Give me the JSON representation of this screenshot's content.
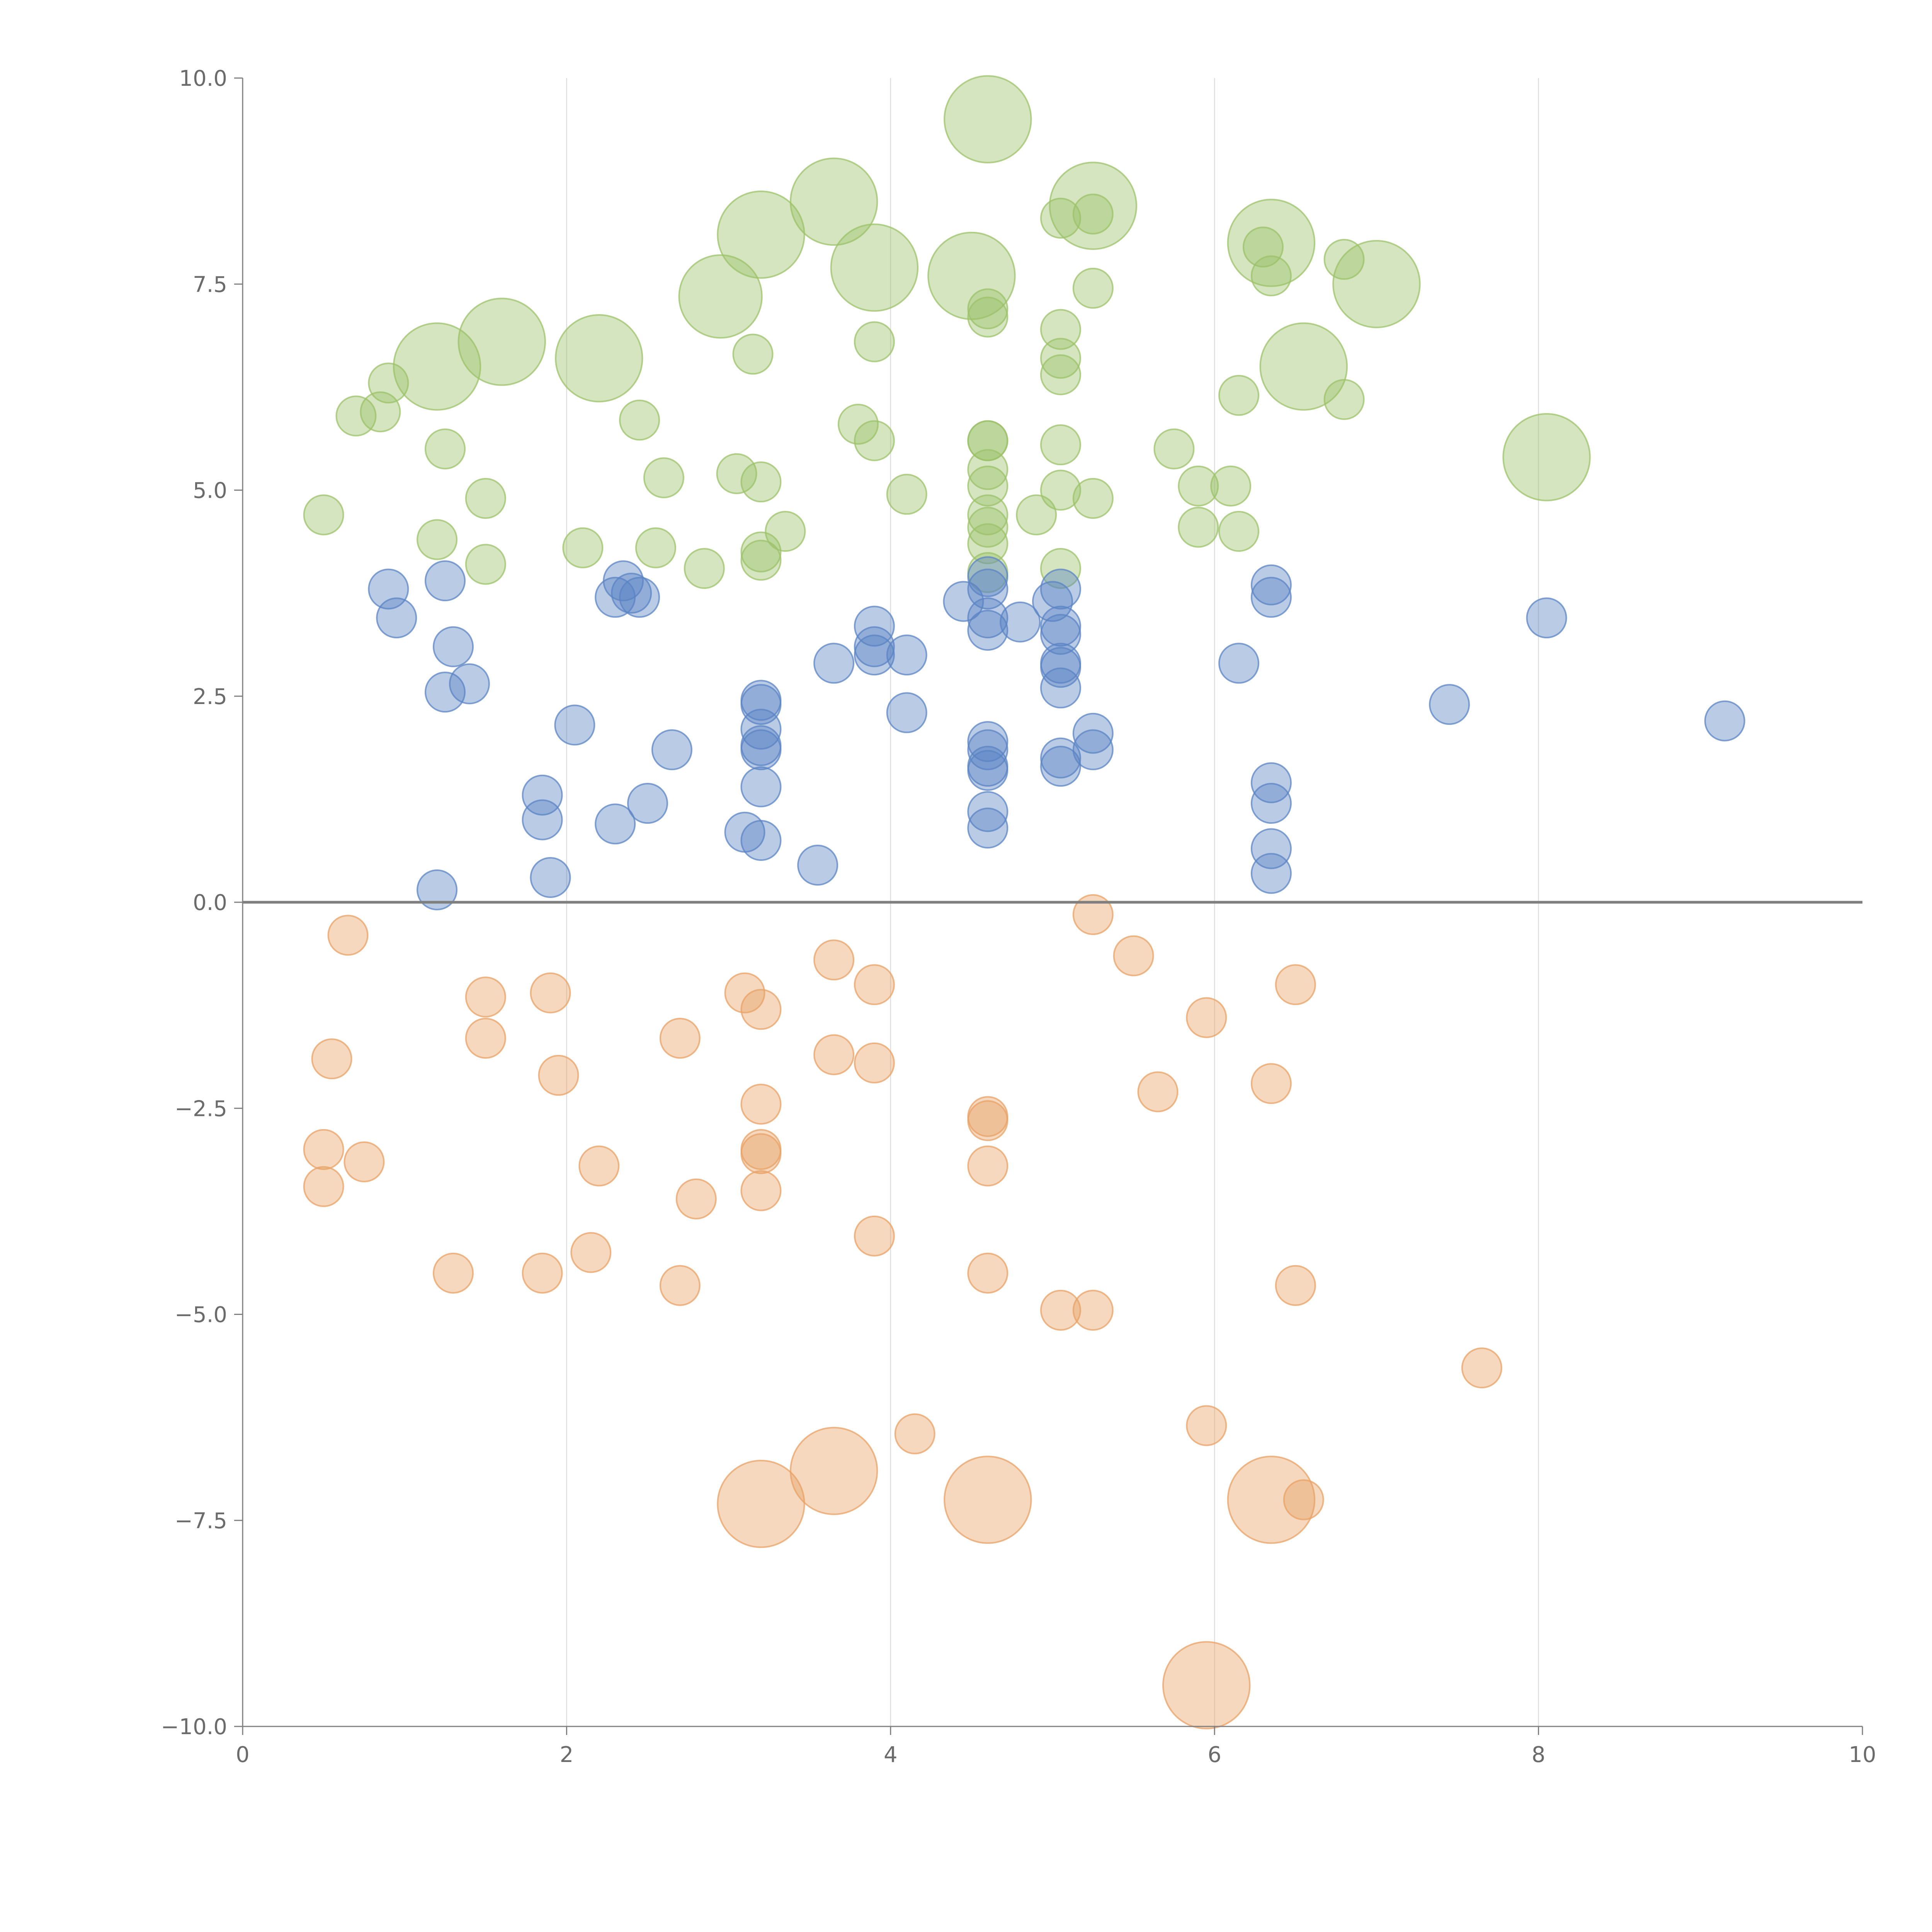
{
  "chart_data": {
    "type": "scatter",
    "title": "",
    "xlabel": "",
    "ylabel": "",
    "xlim": [
      0,
      10
    ],
    "ylim": [
      -10,
      10
    ],
    "x_ticks": [
      "0",
      "2",
      "4",
      "6",
      "8",
      "10"
    ],
    "y_ticks": [
      "10.0",
      "7.5",
      "5.0",
      "2.5",
      "0.0",
      "−2.5",
      "−5.0",
      "−7.5",
      "−10.0"
    ],
    "x_tick_values": [
      0,
      2,
      4,
      6,
      8,
      10
    ],
    "y_tick_values": [
      10,
      7.5,
      5,
      2.5,
      0,
      -2.5,
      -5,
      -7.5,
      -10
    ],
    "x_grid_values": [
      2,
      4,
      6,
      8
    ],
    "reference_line_y": 0,
    "colors": {
      "green": "#9cc26a",
      "blue": "#5b84c4",
      "orange": "#e8a165",
      "axis": "#7f7f7f",
      "grid": "#dddddd",
      "text": "#6b6b6b"
    },
    "series": [
      {
        "name": "green",
        "color": "#9cc26a",
        "points": [
          [
            0.5,
            4.7,
            1
          ],
          [
            0.7,
            5.9,
            1
          ],
          [
            0.85,
            5.95,
            1
          ],
          [
            0.9,
            6.3,
            1
          ],
          [
            1.2,
            6.5,
            2.2
          ],
          [
            1.2,
            4.4,
            1
          ],
          [
            1.25,
            5.5,
            1
          ],
          [
            1.5,
            4.9,
            1
          ],
          [
            1.5,
            4.1,
            1
          ],
          [
            1.6,
            6.8,
            2.2
          ],
          [
            2.1,
            4.3,
            1
          ],
          [
            2.2,
            6.6,
            2.2
          ],
          [
            2.45,
            5.85,
            1
          ],
          [
            2.55,
            4.3,
            1
          ],
          [
            2.6,
            5.15,
            1
          ],
          [
            2.85,
            4.05,
            1
          ],
          [
            2.95,
            7.35,
            2.1
          ],
          [
            3.05,
            5.2,
            1
          ],
          [
            3.2,
            5.1,
            1
          ],
          [
            3.15,
            6.65,
            1
          ],
          [
            3.2,
            4.25,
            1
          ],
          [
            3.2,
            4.15,
            1
          ],
          [
            3.2,
            8.1,
            2.2
          ],
          [
            3.35,
            4.5,
            1
          ],
          [
            3.65,
            8.5,
            2.2
          ],
          [
            3.8,
            5.8,
            1
          ],
          [
            3.9,
            5.6,
            1
          ],
          [
            3.9,
            6.8,
            1
          ],
          [
            3.9,
            7.7,
            2.2
          ],
          [
            4.1,
            4.95,
            1
          ],
          [
            4.5,
            7.6,
            2.2
          ],
          [
            4.6,
            9.5,
            2.2
          ],
          [
            4.6,
            7.2,
            1
          ],
          [
            4.6,
            7.1,
            1
          ],
          [
            4.6,
            5.6,
            1
          ],
          [
            4.6,
            5.6,
            1
          ],
          [
            4.6,
            5.25,
            1
          ],
          [
            4.6,
            5.05,
            1
          ],
          [
            4.6,
            4.7,
            1
          ],
          [
            4.6,
            4.55,
            1
          ],
          [
            4.6,
            4.35,
            1
          ],
          [
            4.6,
            4.0,
            1
          ],
          [
            4.9,
            4.7,
            1
          ],
          [
            5.05,
            8.3,
            1
          ],
          [
            5.05,
            6.95,
            1
          ],
          [
            5.05,
            6.6,
            1
          ],
          [
            5.05,
            6.4,
            1
          ],
          [
            5.05,
            5.55,
            1
          ],
          [
            5.05,
            5.0,
            1
          ],
          [
            5.05,
            4.05,
            1
          ],
          [
            5.25,
            8.45,
            2.2
          ],
          [
            5.25,
            8.35,
            1
          ],
          [
            5.25,
            7.45,
            1
          ],
          [
            5.25,
            4.9,
            1
          ],
          [
            5.75,
            5.5,
            1
          ],
          [
            5.9,
            5.05,
            1
          ],
          [
            5.9,
            4.55,
            1
          ],
          [
            6.1,
            5.05,
            1
          ],
          [
            6.15,
            6.15,
            1
          ],
          [
            6.15,
            4.5,
            1
          ],
          [
            6.3,
            7.95,
            1
          ],
          [
            6.35,
            8.0,
            2.2
          ],
          [
            6.35,
            7.6,
            1
          ],
          [
            6.55,
            6.5,
            2.2
          ],
          [
            6.8,
            7.8,
            1
          ],
          [
            6.8,
            6.1,
            1
          ],
          [
            7.0,
            7.5,
            2.2
          ],
          [
            8.05,
            5.4,
            2.2
          ]
        ]
      },
      {
        "name": "blue",
        "color": "#5b84c4",
        "points": [
          [
            0.9,
            3.8,
            1
          ],
          [
            0.95,
            3.45,
            1
          ],
          [
            1.2,
            0.15,
            1
          ],
          [
            1.25,
            2.55,
            1
          ],
          [
            1.25,
            3.9,
            1
          ],
          [
            1.3,
            3.1,
            1
          ],
          [
            1.4,
            2.65,
            1
          ],
          [
            1.85,
            1.3,
            1
          ],
          [
            1.85,
            1.0,
            1
          ],
          [
            1.9,
            0.3,
            1
          ],
          [
            2.05,
            2.15,
            1
          ],
          [
            2.3,
            3.7,
            1
          ],
          [
            2.3,
            0.95,
            1
          ],
          [
            2.35,
            3.9,
            1
          ],
          [
            2.4,
            3.75,
            1
          ],
          [
            2.45,
            3.7,
            1
          ],
          [
            2.5,
            1.2,
            1
          ],
          [
            2.65,
            1.85,
            1
          ],
          [
            3.1,
            0.85,
            1
          ],
          [
            3.2,
            2.45,
            1
          ],
          [
            3.2,
            2.4,
            1
          ],
          [
            3.2,
            2.1,
            1
          ],
          [
            3.2,
            1.9,
            1
          ],
          [
            3.2,
            1.85,
            1
          ],
          [
            3.2,
            1.4,
            1
          ],
          [
            3.2,
            0.75,
            1
          ],
          [
            3.55,
            0.45,
            1
          ],
          [
            3.65,
            2.9,
            1
          ],
          [
            3.9,
            3.35,
            1
          ],
          [
            3.9,
            3.1,
            1
          ],
          [
            3.9,
            3.0,
            1
          ],
          [
            4.1,
            3.0,
            1
          ],
          [
            4.1,
            2.3,
            1
          ],
          [
            4.45,
            3.65,
            1
          ],
          [
            4.6,
            3.95,
            1
          ],
          [
            4.6,
            3.8,
            1
          ],
          [
            4.6,
            3.45,
            1
          ],
          [
            4.6,
            3.3,
            1
          ],
          [
            4.6,
            1.95,
            1
          ],
          [
            4.6,
            1.85,
            1
          ],
          [
            4.6,
            1.65,
            1
          ],
          [
            4.6,
            1.6,
            1
          ],
          [
            4.6,
            1.1,
            1
          ],
          [
            4.6,
            0.9,
            1
          ],
          [
            4.8,
            3.4,
            1
          ],
          [
            5.0,
            3.65,
            1
          ],
          [
            5.05,
            3.8,
            1
          ],
          [
            5.05,
            3.35,
            1
          ],
          [
            5.05,
            3.25,
            1
          ],
          [
            5.05,
            2.9,
            1
          ],
          [
            5.05,
            2.85,
            1
          ],
          [
            5.05,
            2.6,
            1
          ],
          [
            5.05,
            1.75,
            1
          ],
          [
            5.05,
            1.65,
            1
          ],
          [
            5.25,
            2.05,
            1
          ],
          [
            5.25,
            1.85,
            1
          ],
          [
            6.15,
            2.9,
            1
          ],
          [
            6.35,
            3.85,
            1
          ],
          [
            6.35,
            3.7,
            1
          ],
          [
            6.35,
            1.45,
            1
          ],
          [
            6.35,
            1.2,
            1
          ],
          [
            6.35,
            0.65,
            1
          ],
          [
            6.35,
            0.35,
            1
          ],
          [
            7.45,
            2.4,
            1
          ],
          [
            8.05,
            3.45,
            1
          ],
          [
            9.15,
            2.2,
            1
          ]
        ]
      },
      {
        "name": "orange",
        "color": "#e8a165",
        "points": [
          [
            0.5,
            -3.0,
            1
          ],
          [
            0.5,
            -3.45,
            1
          ],
          [
            0.55,
            -1.9,
            1
          ],
          [
            0.65,
            -0.4,
            1
          ],
          [
            0.75,
            -3.15,
            1
          ],
          [
            1.3,
            -4.5,
            1
          ],
          [
            1.5,
            -1.15,
            1
          ],
          [
            1.5,
            -1.65,
            1
          ],
          [
            1.85,
            -4.5,
            1
          ],
          [
            1.9,
            -1.1,
            1
          ],
          [
            1.95,
            -2.1,
            1
          ],
          [
            2.15,
            -4.25,
            1
          ],
          [
            2.2,
            -3.2,
            1
          ],
          [
            2.7,
            -4.65,
            1
          ],
          [
            2.7,
            -1.65,
            1
          ],
          [
            2.8,
            -3.6,
            1
          ],
          [
            3.1,
            -1.1,
            1
          ],
          [
            3.2,
            -1.3,
            1
          ],
          [
            3.2,
            -2.45,
            1
          ],
          [
            3.2,
            -3.0,
            1
          ],
          [
            3.2,
            -3.05,
            1
          ],
          [
            3.2,
            -3.5,
            1
          ],
          [
            3.2,
            -7.3,
            2.2
          ],
          [
            3.65,
            -0.7,
            1
          ],
          [
            3.65,
            -1.85,
            1
          ],
          [
            3.65,
            -6.9,
            2.2
          ],
          [
            3.9,
            -1.0,
            1
          ],
          [
            3.9,
            -1.95,
            1
          ],
          [
            3.9,
            -4.05,
            1
          ],
          [
            4.15,
            -6.45,
            1
          ],
          [
            4.6,
            -2.6,
            1
          ],
          [
            4.6,
            -2.65,
            1
          ],
          [
            4.6,
            -3.2,
            1
          ],
          [
            4.6,
            -4.5,
            1
          ],
          [
            4.6,
            -7.25,
            2.2
          ],
          [
            5.05,
            -4.95,
            1
          ],
          [
            5.25,
            -0.15,
            1
          ],
          [
            5.25,
            -4.95,
            1
          ],
          [
            5.5,
            -0.65,
            1
          ],
          [
            5.65,
            -2.3,
            1
          ],
          [
            5.95,
            -1.4,
            1
          ],
          [
            5.95,
            -6.35,
            1
          ],
          [
            5.95,
            -9.5,
            2.2
          ],
          [
            6.35,
            -2.2,
            1
          ],
          [
            6.35,
            -7.25,
            2.2
          ],
          [
            6.5,
            -1.0,
            1
          ],
          [
            6.5,
            -4.65,
            1
          ],
          [
            6.55,
            -7.25,
            1
          ],
          [
            7.65,
            -5.65,
            1
          ]
        ]
      }
    ]
  }
}
